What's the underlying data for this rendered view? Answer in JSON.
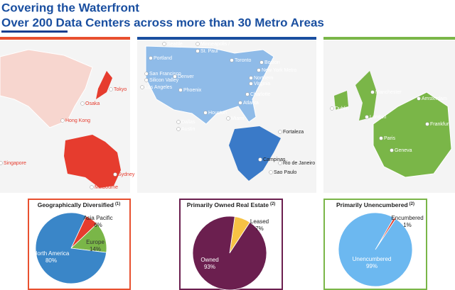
{
  "title": "Covering the Waterfront",
  "subtitle": "Over 200 Data Centers across more than 30 Metro Areas",
  "maps": [
    {
      "cities": [
        "Tokyo",
        "Osaka",
        "Hong Kong",
        "Singapore",
        "Sydney",
        "Melbourne"
      ]
    },
    {
      "cities": [
        "Seattle",
        "Minneapolis /",
        "St. Paul",
        "Toronto",
        "Boston",
        "New York Metro",
        "Portland",
        "San Francisco",
        "Silicon Valley",
        "Los Angeles",
        "Denver",
        "Phoenix",
        "Dallas",
        "Austin",
        "Houston",
        "Northern",
        "Virginia",
        "Charlotte",
        "Atlanta",
        "Miami",
        "Fortaleza",
        "Campinas",
        "Rio de Janeiro",
        "Sao Paulo"
      ]
    },
    {
      "cities": [
        "Manchester",
        "Amsterdam",
        "Dublin",
        "London",
        "Frankfurt",
        "Paris",
        "Geneva"
      ]
    }
  ],
  "chart_data": [
    {
      "type": "pie",
      "title": "Geographically Diversified",
      "footnote": "(1)",
      "border_color": "#e8502f",
      "categories": [
        "Asia Pacific",
        "Europe",
        "North America"
      ],
      "values": [
        6,
        14,
        80
      ],
      "value_labels": [
        "6%",
        "14%",
        "80%"
      ],
      "colors": [
        "#e63c2e",
        "#7ab648",
        "#3a86c8"
      ]
    },
    {
      "type": "pie",
      "title": "Primarily Owned Real Estate",
      "footnote": "(2)",
      "border_color": "#6b1f4f",
      "categories": [
        "Leased",
        "Owned"
      ],
      "values": [
        7,
        93
      ],
      "value_labels": [
        "7%",
        "93%"
      ],
      "colors": [
        "#f6c244",
        "#6b1f4f"
      ]
    },
    {
      "type": "pie",
      "title": "Primarily Unencumbered",
      "footnote": "(2)",
      "border_color": "#7ab648",
      "categories": [
        "Encumbered",
        "Unencumbered"
      ],
      "values": [
        1,
        99
      ],
      "value_labels": [
        "1%",
        "99%"
      ],
      "colors": [
        "#e04030",
        "#6cb8f0"
      ]
    }
  ]
}
